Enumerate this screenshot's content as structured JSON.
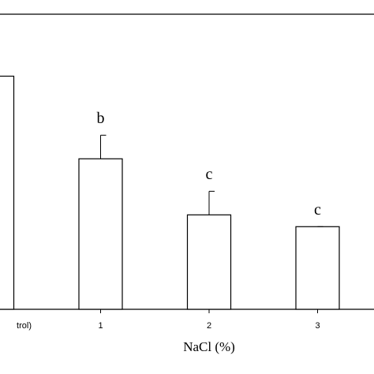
{
  "chart_data": {
    "type": "bar",
    "x_label": "NaCl (%)",
    "categories": [
      "trol)",
      "1",
      "2",
      "3"
    ],
    "values": [
      79,
      51,
      32,
      28
    ],
    "errors": [
      null,
      8,
      8,
      0
    ],
    "annotations": [
      null,
      "b",
      "c",
      "c"
    ],
    "color": "#ffffff",
    "ylim": [
      0,
      100
    ]
  }
}
